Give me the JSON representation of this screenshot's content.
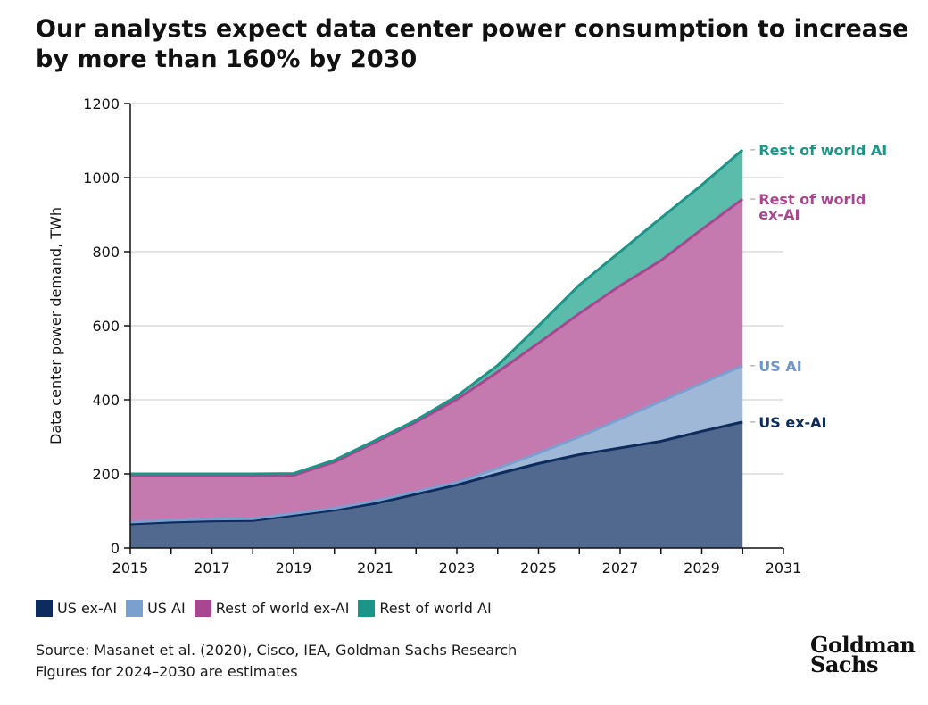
{
  "title": "Our analysts expect data center power consumption to increase by more than 160% by 2030",
  "chart_data": {
    "type": "area",
    "stacked": true,
    "ylabel": "Data center power demand, TWh",
    "xlabel": "",
    "ylim": [
      0,
      1200
    ],
    "yticks": [
      0,
      200,
      400,
      600,
      800,
      1000,
      1200
    ],
    "xlim": [
      2015,
      2031
    ],
    "xticks": [
      2015,
      2017,
      2019,
      2021,
      2023,
      2025,
      2027,
      2029,
      2031
    ],
    "x": [
      2015,
      2016,
      2017,
      2018,
      2019,
      2020,
      2021,
      2022,
      2023,
      2024,
      2025,
      2026,
      2027,
      2028,
      2029,
      2030
    ],
    "series": [
      {
        "name": "US ex-AI",
        "label": "US ex-AI",
        "color": "#0d2b5c",
        "values": [
          65,
          70,
          73,
          74,
          88,
          102,
          120,
          145,
          170,
          200,
          228,
          252,
          270,
          288,
          315,
          340
        ]
      },
      {
        "name": "US AI",
        "label": "US AI",
        "color": "#7b9fcf",
        "values": [
          5,
          5,
          5,
          5,
          5,
          5,
          7,
          7,
          7,
          15,
          28,
          48,
          78,
          108,
          130,
          152
        ]
      },
      {
        "name": "Rest of world ex-AI",
        "label": "Rest of world ex-AI",
        "color": "#a8468f",
        "values": [
          125,
          120,
          117,
          116,
          103,
          125,
          158,
          188,
          224,
          260,
          297,
          333,
          360,
          380,
          415,
          450
        ]
      },
      {
        "name": "Rest of world AI",
        "label": "Rest of world AI",
        "color": "#1d9488",
        "values": [
          5,
          5,
          5,
          5,
          5,
          5,
          5,
          5,
          9,
          18,
          47,
          77,
          92,
          115,
          120,
          133
        ]
      }
    ],
    "end_labels": [
      {
        "series": "Rest of world AI",
        "lines": [
          "Rest of world AI"
        ]
      },
      {
        "series": "Rest of world ex-AI",
        "lines": [
          "Rest of world",
          "ex-AI"
        ]
      },
      {
        "series": "US AI",
        "lines": [
          "US AI"
        ]
      },
      {
        "series": "US ex-AI",
        "lines": [
          "US ex-AI"
        ]
      }
    ],
    "grid": true
  },
  "legend": [
    {
      "label": "US ex-AI",
      "color": "#0d2b5c"
    },
    {
      "label": "US AI",
      "color": "#7b9fcf"
    },
    {
      "label": "Rest of world ex-AI",
      "color": "#a8468f"
    },
    {
      "label": "Rest of world AI",
      "color": "#1d9488"
    }
  ],
  "source": {
    "line1": "Source: Masanet et al. (2020), Cisco, IEA, Goldman Sachs Research",
    "line2": "Figures for 2024–2030 are estimates"
  },
  "logo": {
    "line1": "Goldman",
    "line2": "Sachs"
  }
}
